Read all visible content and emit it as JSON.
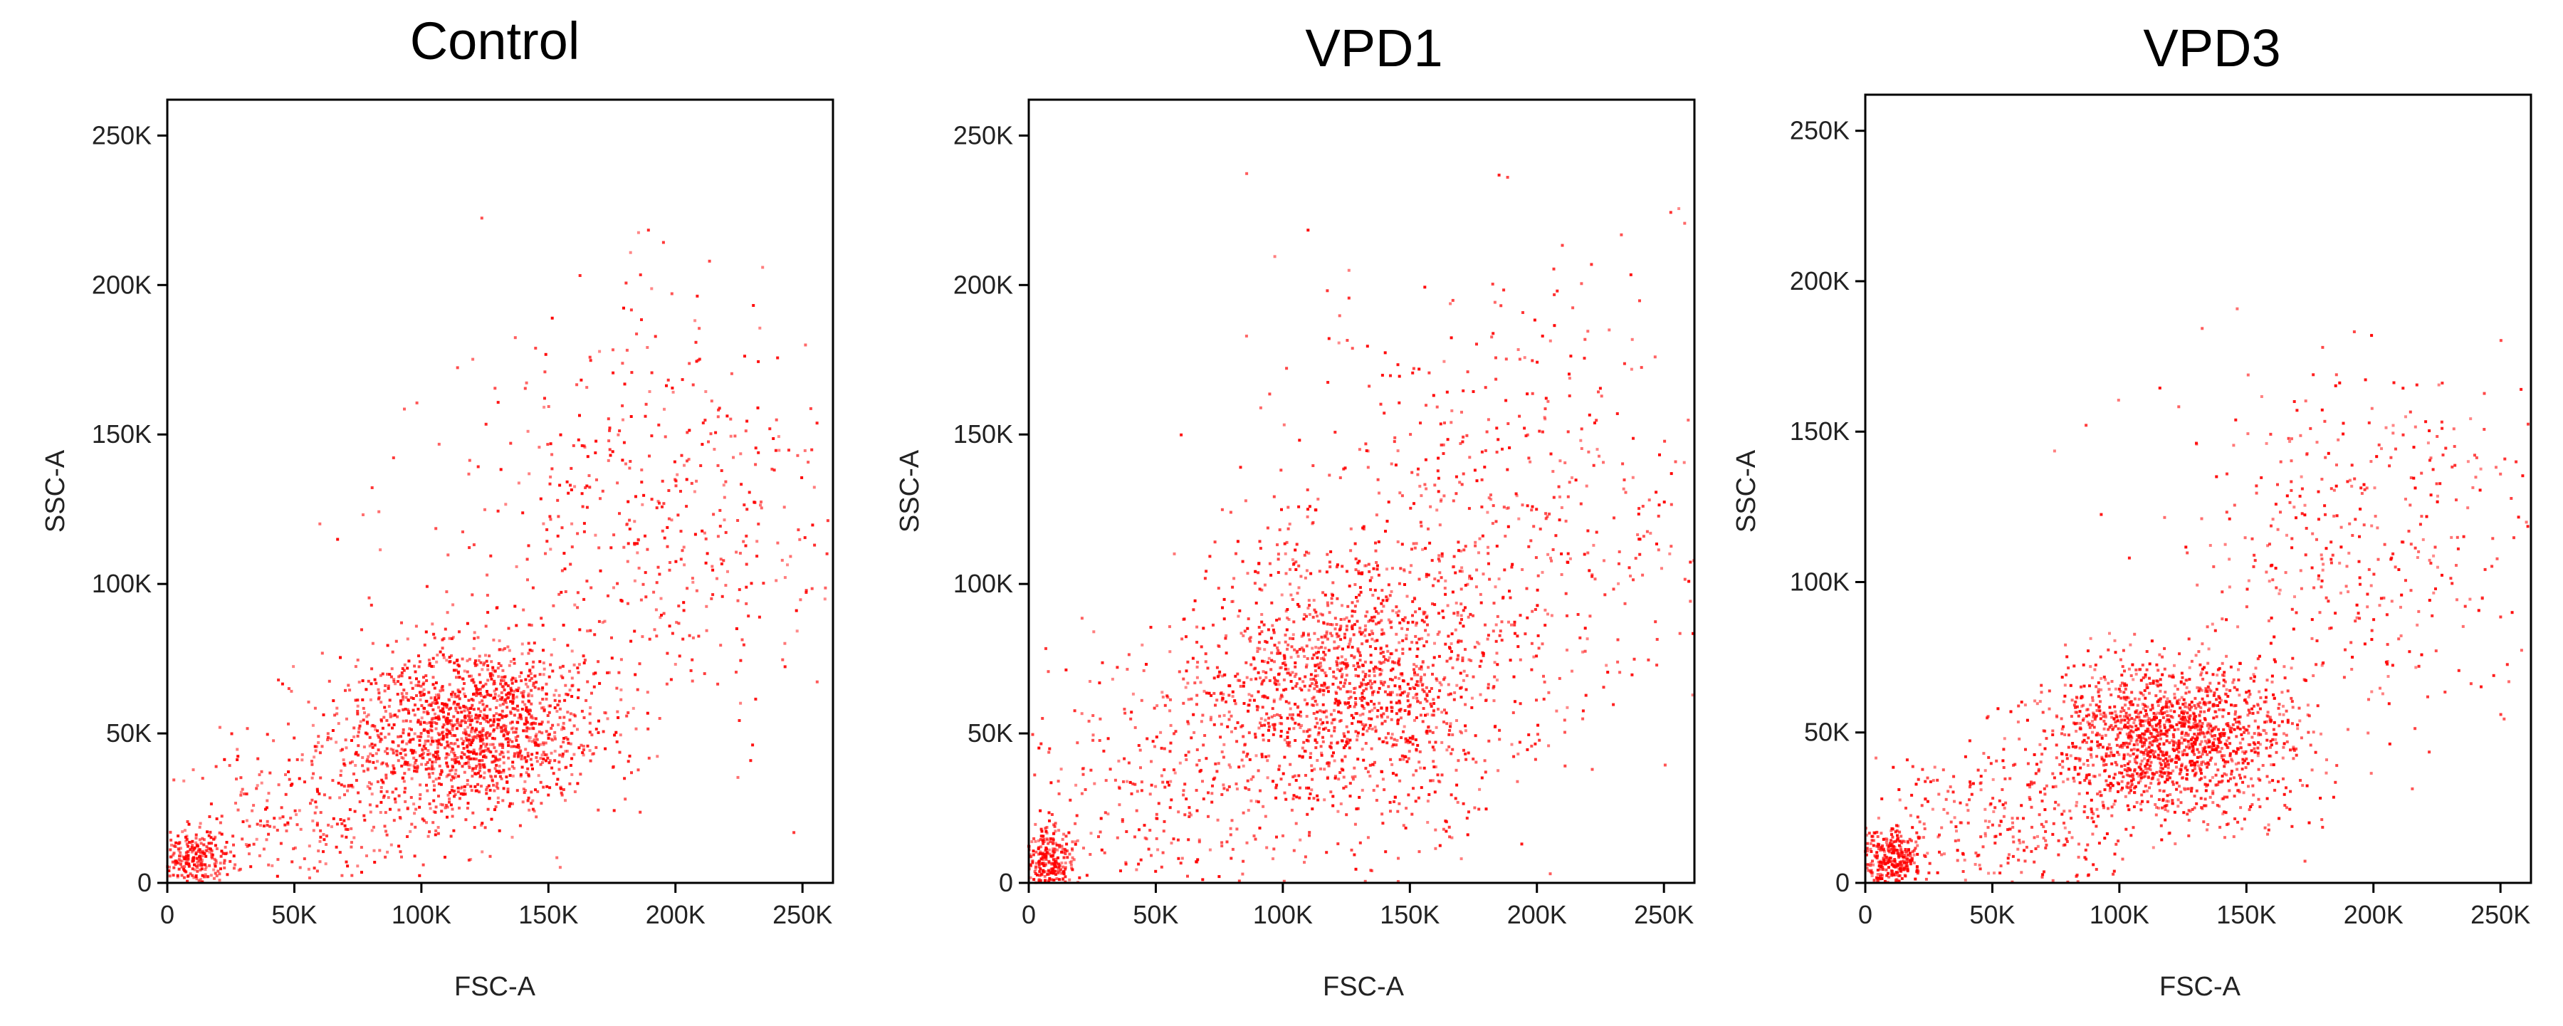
{
  "chart_data": [
    {
      "type": "scatter",
      "title": "Control",
      "xlabel": "FSC-A",
      "ylabel": "SSC-A",
      "xlim": [
        0,
        262000
      ],
      "ylim": [
        0,
        262000
      ],
      "x_ticks": [
        "0",
        "50K",
        "100K",
        "150K",
        "200K",
        "250K"
      ],
      "y_ticks": [
        "0",
        "50K",
        "100K",
        "150K",
        "200K",
        "250K"
      ],
      "marker_color": "#ff0000",
      "series": [
        {
          "clusters": [
            {
              "center": [
                12000,
                8000
              ],
              "spread": [
                7000,
                5000
              ],
              "share": 0.1
            },
            {
              "center": [
                120000,
                52000
              ],
              "spread": [
                25000,
                14000
              ],
              "share": 0.58
            },
            {
              "center": [
                190000,
                120000
              ],
              "spread": [
                40000,
                35000
              ],
              "share": 0.2
            },
            {
              "center": [
                60000,
                25000
              ],
              "spread": [
                30000,
                15000
              ],
              "share": 0.12
            }
          ]
        }
      ]
    },
    {
      "type": "scatter",
      "title": "VPD1",
      "xlabel": "FSC-A",
      "ylabel": "SSC-A",
      "xlim": [
        0,
        262000
      ],
      "ylim": [
        0,
        262000
      ],
      "x_ticks": [
        "0",
        "50K",
        "100K",
        "150K",
        "200K",
        "250K"
      ],
      "y_ticks": [
        "0",
        "50K",
        "100K",
        "150K",
        "200K",
        "250K"
      ],
      "marker_color": "#ff0000",
      "series": [
        {
          "clusters": [
            {
              "center": [
                8000,
                8000
              ],
              "spread": [
                6000,
                6000
              ],
              "share": 0.1
            },
            {
              "center": [
                125000,
                65000
              ],
              "spread": [
                30000,
                22000
              ],
              "share": 0.55
            },
            {
              "center": [
                185000,
                120000
              ],
              "spread": [
                45000,
                40000
              ],
              "share": 0.23
            },
            {
              "center": [
                55000,
                30000
              ],
              "spread": [
                30000,
                25000
              ],
              "share": 0.12
            }
          ]
        }
      ]
    },
    {
      "type": "scatter",
      "title": "VPD3",
      "xlabel": "FSC-A",
      "ylabel": "SSC-A",
      "xlim": [
        0,
        262000
      ],
      "ylim": [
        0,
        262000
      ],
      "x_ticks": [
        "0",
        "50K",
        "100K",
        "150K",
        "200K",
        "250K"
      ],
      "y_ticks": [
        "0",
        "50K",
        "100K",
        "150K",
        "200K",
        "250K"
      ],
      "marker_color": "#ff0000",
      "series": [
        {
          "clusters": [
            {
              "center": [
                10000,
                8000
              ],
              "spread": [
                6000,
                5000
              ],
              "share": 0.12
            },
            {
              "center": [
                120000,
                48000
              ],
              "spread": [
                24000,
                13000
              ],
              "share": 0.6
            },
            {
              "center": [
                200000,
                115000
              ],
              "spread": [
                38000,
                30000
              ],
              "share": 0.16
            },
            {
              "center": [
                55000,
                20000
              ],
              "spread": [
                30000,
                15000
              ],
              "share": 0.12
            }
          ]
        }
      ]
    }
  ]
}
